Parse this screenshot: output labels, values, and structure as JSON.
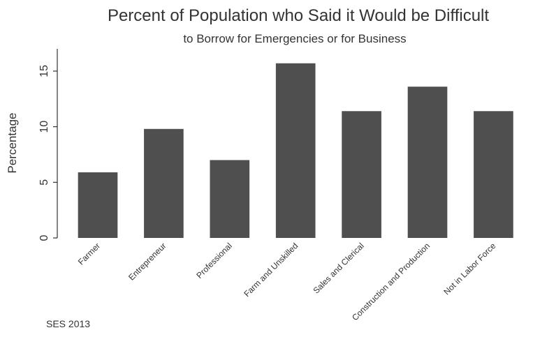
{
  "chart_data": {
    "type": "bar",
    "title": "Percent of Population who Said it Would be Difficult",
    "subtitle": "to Borrow for Emergencies or for Business",
    "y_label": "Percentage",
    "note": "SES 2013",
    "categories": [
      "Farmer",
      "Entrepreneur",
      "Professional",
      "Farm and Unskilled",
      "Sales and Clerical",
      "Construction and Production",
      "Not in Labor Force"
    ],
    "values": [
      5.9,
      9.8,
      7.0,
      15.7,
      11.4,
      13.6,
      11.4
    ],
    "color": "#4f4f4f",
    "ylim": [
      0,
      17
    ],
    "yticks": [
      0,
      5,
      10,
      15
    ],
    "grid": false
  }
}
